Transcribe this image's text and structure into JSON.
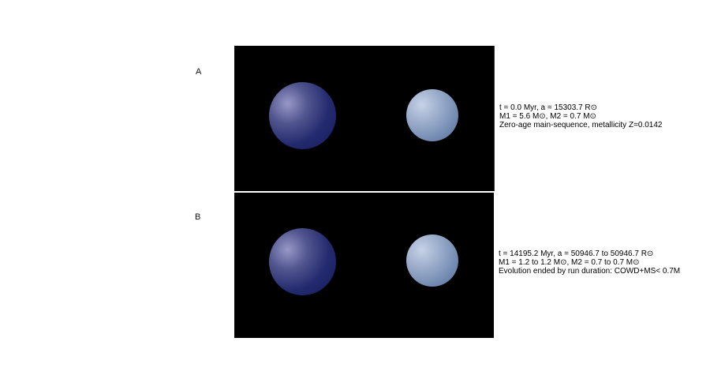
{
  "panels": [
    {
      "label": "A",
      "lines": [
        "t = 0.0 Myr, a = 15303.7 R⊙",
        "M1 = 5.6 M⊙, M2 = 0.7 M⊙",
        "Zero-age main-sequence, metallicity Z=0.0142"
      ],
      "star_colors": {
        "primary": "#1e2566",
        "secondary": "#7f95ba"
      }
    },
    {
      "label": "B",
      "lines": [
        "t = 14195.2 Myr, a = 50946.7 to 50946.7 R⊙",
        "M1 = 1.2 to 1.2 M⊙, M2 = 0.7 to 0.7 M⊙",
        "Evolution ended by run duration: COWD+MS< 0.7M"
      ],
      "star_colors": {
        "primary": "#1e2566",
        "secondary": "#7f95ba"
      }
    }
  ],
  "background_color": "#000000"
}
